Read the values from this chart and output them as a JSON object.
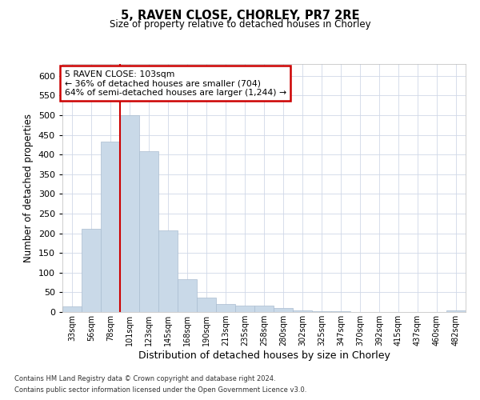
{
  "title": "5, RAVEN CLOSE, CHORLEY, PR7 2RE",
  "subtitle": "Size of property relative to detached houses in Chorley",
  "xlabel": "Distribution of detached houses by size in Chorley",
  "ylabel": "Number of detached properties",
  "footnote1": "Contains HM Land Registry data © Crown copyright and database right 2024.",
  "footnote2": "Contains public sector information licensed under the Open Government Licence v3.0.",
  "annotation_line1": "5 RAVEN CLOSE: 103sqm",
  "annotation_line2": "← 36% of detached houses are smaller (704)",
  "annotation_line3": "64% of semi-detached houses are larger (1,244) →",
  "bar_color": "#c9d9e8",
  "bar_edgecolor": "#aabdd0",
  "vline_color": "#cc0000",
  "annotation_box_edgecolor": "#cc0000",
  "background_color": "#ffffff",
  "grid_color": "#d0d8e8",
  "categories": [
    "33sqm",
    "56sqm",
    "78sqm",
    "101sqm",
    "123sqm",
    "145sqm",
    "168sqm",
    "190sqm",
    "213sqm",
    "235sqm",
    "258sqm",
    "280sqm",
    "302sqm",
    "325sqm",
    "347sqm",
    "370sqm",
    "392sqm",
    "415sqm",
    "437sqm",
    "460sqm",
    "482sqm"
  ],
  "values": [
    15,
    212,
    432,
    500,
    408,
    207,
    83,
    37,
    20,
    17,
    17,
    10,
    5,
    3,
    2,
    1,
    1,
    0,
    0,
    0,
    5
  ],
  "vline_x": 2.5,
  "ylim": [
    0,
    630
  ],
  "yticks": [
    0,
    50,
    100,
    150,
    200,
    250,
    300,
    350,
    400,
    450,
    500,
    550,
    600
  ]
}
